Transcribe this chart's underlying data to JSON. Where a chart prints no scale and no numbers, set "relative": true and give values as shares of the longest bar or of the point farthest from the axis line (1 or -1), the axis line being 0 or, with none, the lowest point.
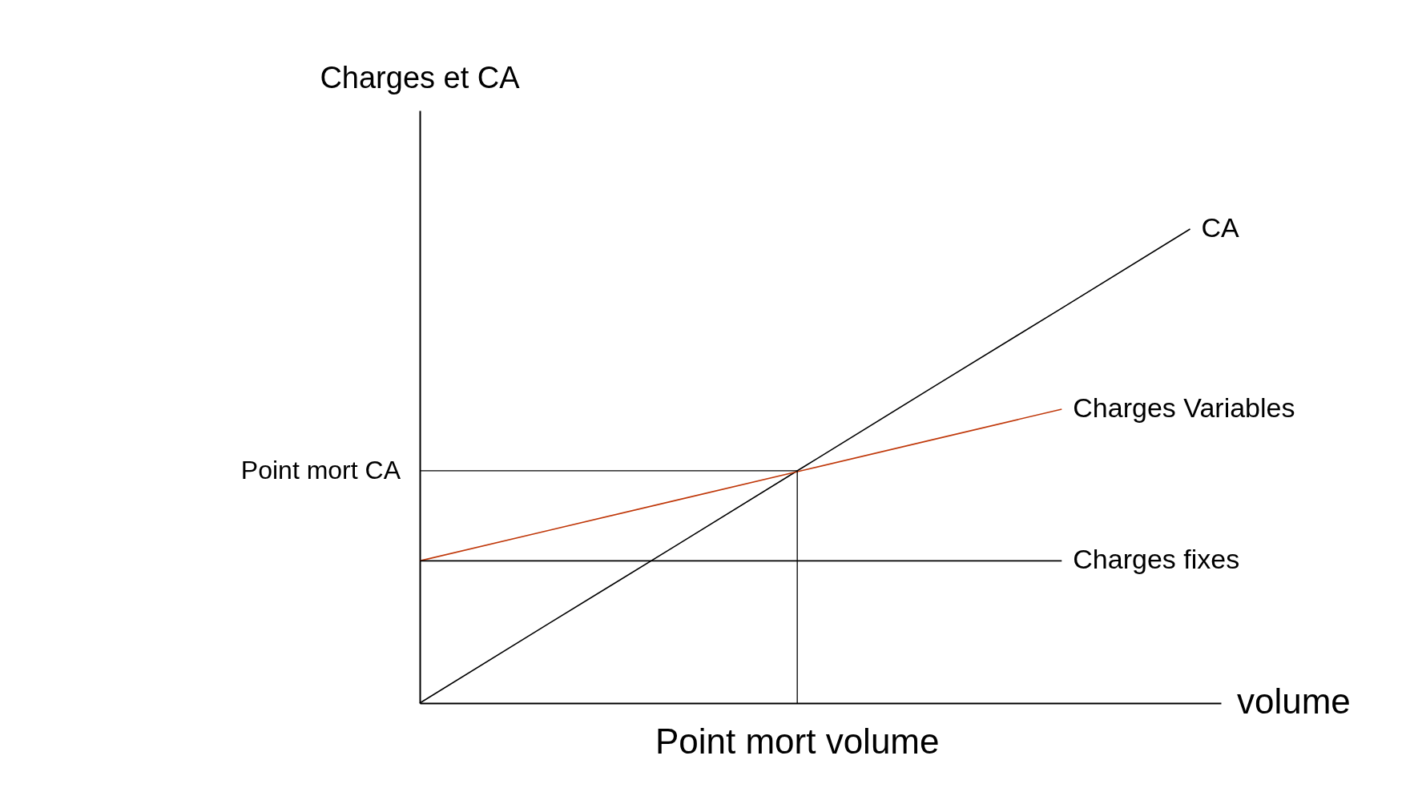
{
  "chart_data": {
    "type": "line",
    "relative": true,
    "xlabel": "volume",
    "ylabel": "Charges et CA",
    "categories": [
      null,
      null,
      null,
      null,
      null,
      null,
      null
    ],
    "series": [
      {
        "name": "CA",
        "color": "#000000",
        "values": [
          0,
          0.167,
          0.333,
          0.5,
          0.667,
          0.833,
          1
        ]
      },
      {
        "name": "Charges Variables",
        "color": "#c0390b",
        "values": [
          0.3,
          0.364,
          0.428,
          0.492,
          0.556,
          0.62,
          null
        ]
      },
      {
        "name": "Charges fixes",
        "color": "#000000",
        "values": [
          0.3,
          0.3,
          0.3,
          0.3,
          0.3,
          0.3,
          null
        ]
      }
    ],
    "ref_lines": [
      {
        "axis": "y",
        "value": 0.49,
        "label": "Point mort CA"
      }
    ],
    "annotations": [
      "Point mort volume"
    ]
  }
}
